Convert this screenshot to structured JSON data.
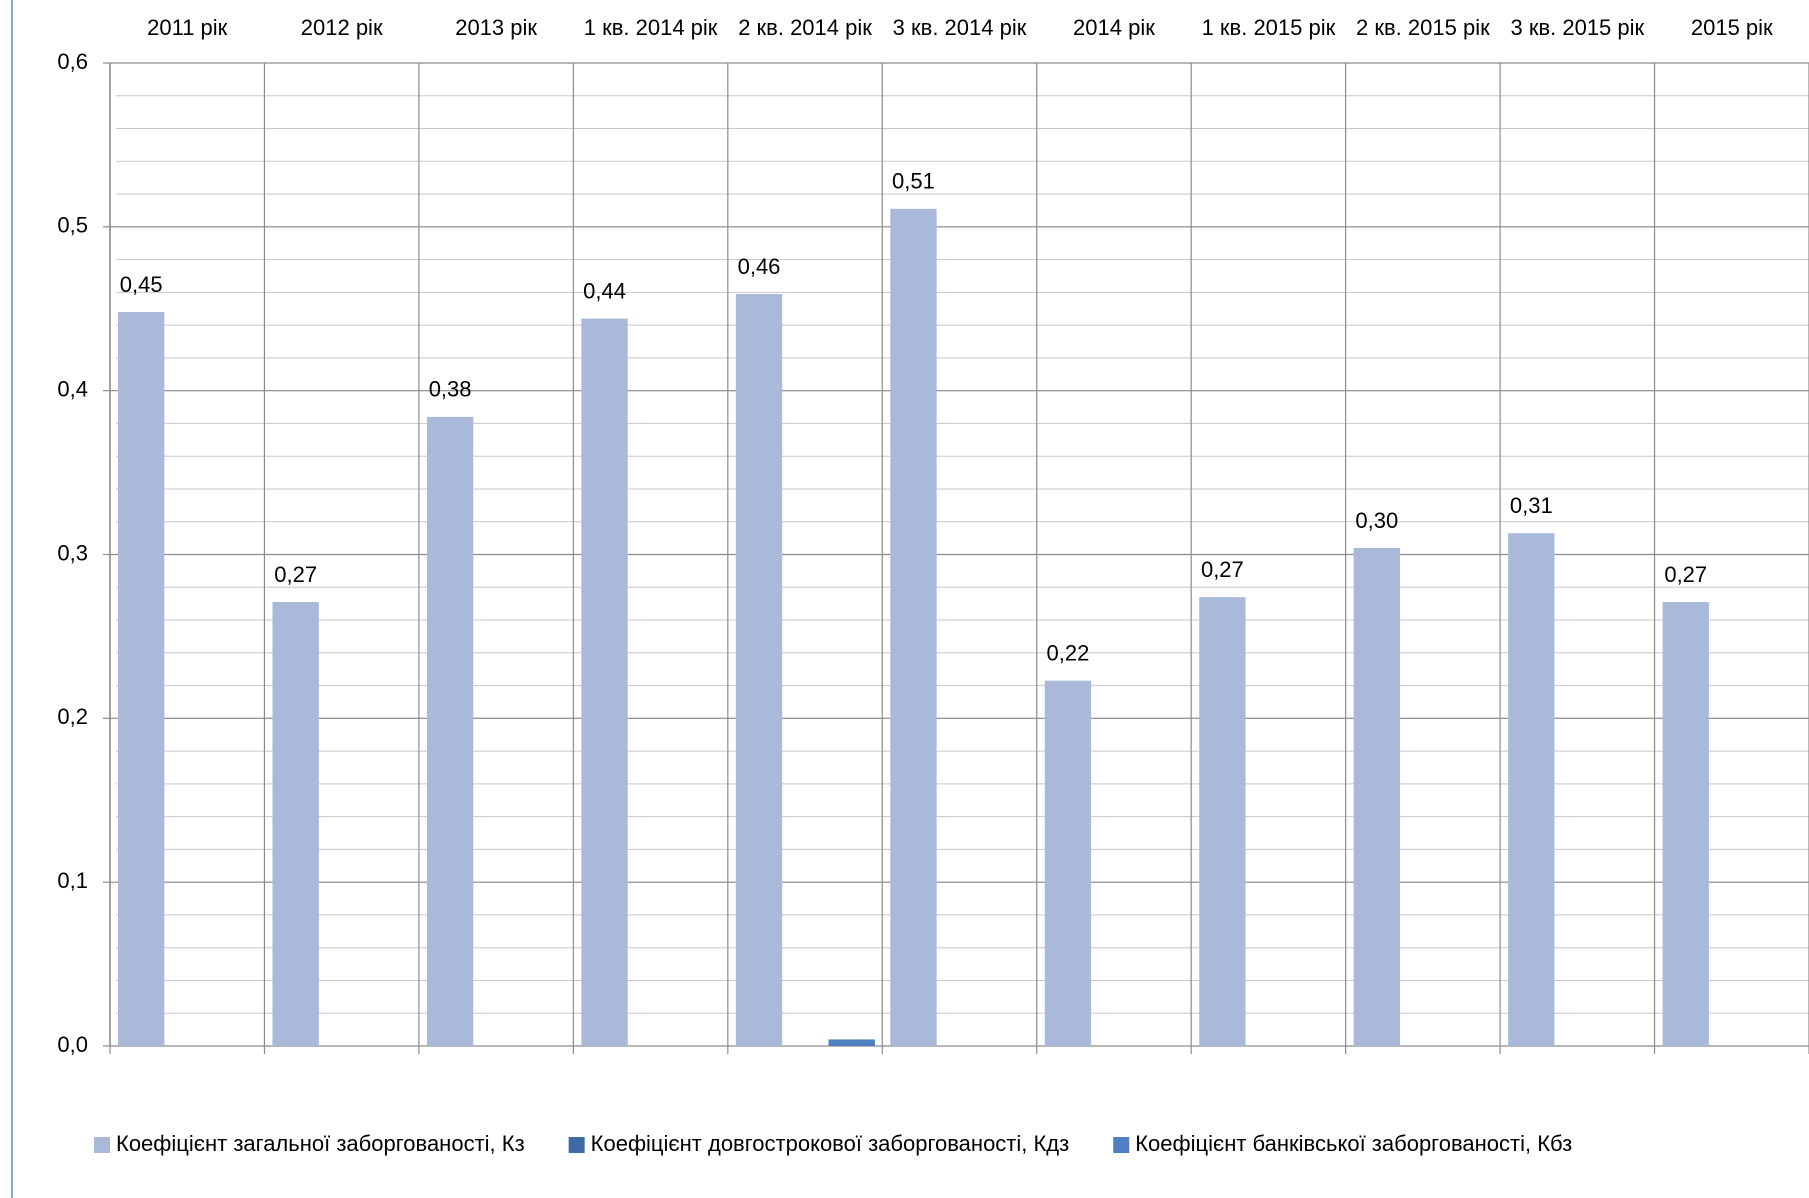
{
  "chart_data": {
    "type": "bar",
    "categories": [
      "2011 рік",
      "2012 рік",
      "2013 рік",
      "1 кв. 2014 рік",
      "2 кв. 2014 рік",
      "3 кв. 2014 рік",
      "2014 рік",
      "1 кв. 2015 рік",
      "2 кв. 2015 рік",
      "3 кв. 2015 рік",
      "2015 рік"
    ],
    "series": [
      {
        "name": "Коефіцієнт загальної заборгованості, Кз",
        "color": "#aab9d9",
        "values": [
          0.448,
          0.271,
          0.384,
          0.444,
          0.459,
          0.511,
          0.223,
          0.274,
          0.304,
          0.313,
          0.271
        ],
        "value_labels": [
          "0,45",
          "0,27",
          "0,38",
          "0,44",
          "0,46",
          "0,51",
          "0,22",
          "0,27",
          "0,30",
          "0,31",
          "0,27"
        ]
      },
      {
        "name": "Коефіцієнт довгострокової заборгованості, Кдз",
        "color": "#3f6aa6",
        "values": [
          0,
          0,
          0,
          0,
          0,
          0,
          0,
          0,
          0,
          0,
          0
        ]
      },
      {
        "name": "Коефіцієнт банківської заборгованості, Кбз",
        "color": "#4f7fc0",
        "values": [
          0,
          0,
          0,
          0,
          0.004,
          0,
          0,
          0,
          0,
          0,
          0
        ]
      }
    ],
    "ylim": [
      0,
      0.6
    ],
    "yticks": [
      {
        "value": 0,
        "label": "0,0"
      },
      {
        "value": 0.1,
        "label": "0,1"
      },
      {
        "value": 0.2,
        "label": "0,2"
      },
      {
        "value": 0.3,
        "label": "0,3"
      },
      {
        "value": 0.4,
        "label": "0,4"
      },
      {
        "value": 0.5,
        "label": "0,5"
      },
      {
        "value": 0.6,
        "label": "0,6"
      }
    ],
    "grid": true,
    "minor_grid": true,
    "legend": "bottom"
  }
}
